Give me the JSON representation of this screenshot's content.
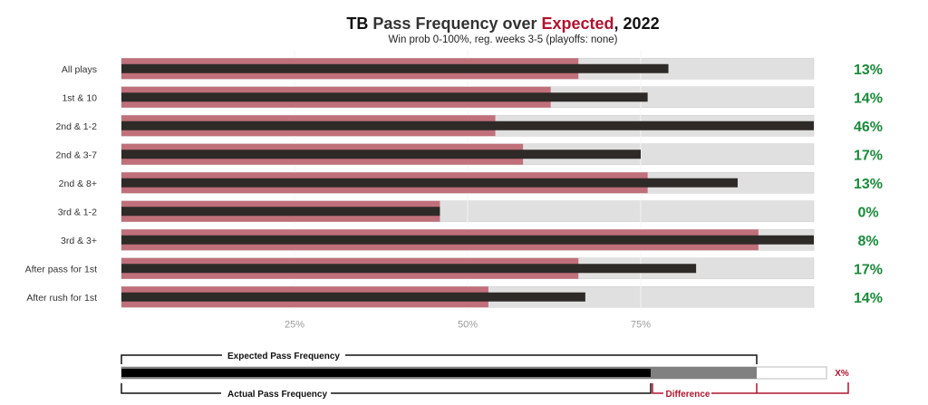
{
  "title": {
    "team": "TB",
    "part1": " Pass Frequency over ",
    "highlight": "Expected",
    "part2": ", 2022"
  },
  "subtitle": "Win prob 0-100%, reg. weeks 3-5 (playoffs: none)",
  "colors": {
    "expected": "#c0707a",
    "actual": "#2e2a28",
    "track": "#e0e0e0",
    "positive": "#1a8a3a",
    "accent": "#b0142e",
    "legend_gray": "#808080"
  },
  "chart_data": {
    "type": "bar",
    "xlim": [
      0,
      100
    ],
    "xticks": [
      25,
      50,
      75
    ],
    "xtick_labels": [
      "25%",
      "50%",
      "75%"
    ],
    "grid": true,
    "categories": [
      "All plays",
      "1st & 10",
      "2nd & 1-2",
      "2nd & 3-7",
      "2nd & 8+",
      "3rd & 1-2",
      "3rd & 3+",
      "After pass for 1st",
      "After rush for 1st"
    ],
    "series": [
      {
        "name": "Expected Pass Frequency",
        "values": [
          66,
          62,
          54,
          58,
          76,
          46,
          92,
          66,
          53
        ]
      },
      {
        "name": "Actual Pass Frequency",
        "values": [
          79,
          76,
          100,
          75,
          89,
          46,
          100,
          83,
          67
        ]
      }
    ],
    "diff_labels": [
      "13%",
      "14%",
      "46%",
      "17%",
      "13%",
      "0%",
      "8%",
      "17%",
      "14%"
    ]
  },
  "legend": {
    "expected_label": "Expected Pass Frequency",
    "actual_label": "Actual Pass Frequency",
    "difference_label": "Difference",
    "diff_label": "X%"
  }
}
